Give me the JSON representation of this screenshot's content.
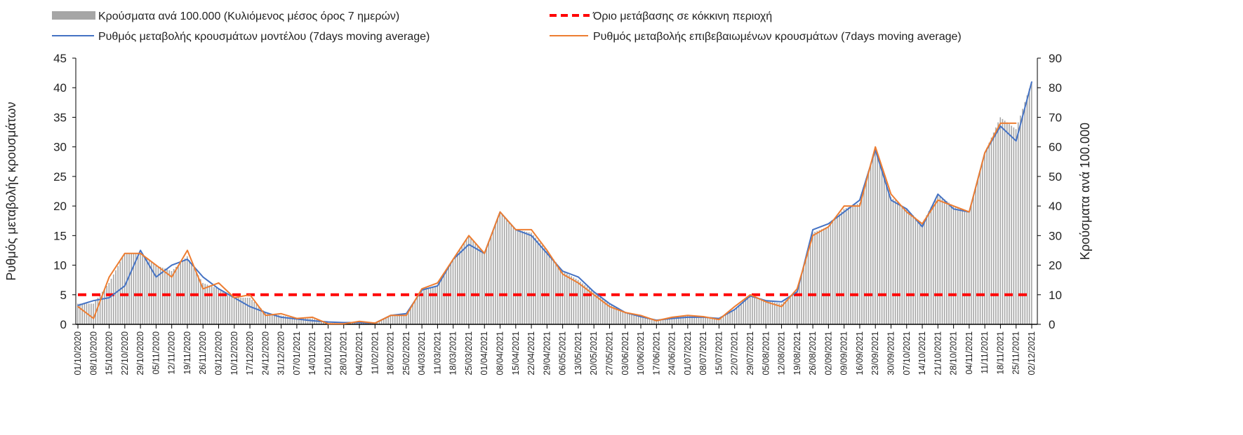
{
  "chart_data": {
    "type": "bar+line",
    "legend": {
      "placement": "top",
      "entries": [
        "Κρούσματα ανά 100.000 (Κυλιόμενος μέσος όρος 7 ημερών)",
        "Όριο μετάβασης σε κόκκινη περιοχή",
        "Ρυθμός μεταβολής κρουσμάτων μοντέλου (7days moving average)",
        "Ρυθμός μεταβολής επιβεβαιωμένων κρουσμάτων (7days moving average)"
      ]
    },
    "ylabel_left": "Ρυθμός μεταβολής κρουσμάτων",
    "ylabel_right": "Κρούσματα ανά 100.000",
    "ylim_left": [
      0,
      45
    ],
    "yticks_left": [
      0,
      5,
      10,
      15,
      20,
      25,
      30,
      35,
      40,
      45
    ],
    "ylim_right": [
      0,
      90
    ],
    "yticks_right": [
      0,
      10,
      20,
      30,
      40,
      50,
      60,
      70,
      80,
      90
    ],
    "x": [
      "01/10/2020",
      "08/10/2020",
      "15/10/2020",
      "22/10/2020",
      "29/10/2020",
      "05/11/2020",
      "12/11/2020",
      "19/11/2020",
      "26/11/2020",
      "03/12/2020",
      "10/12/2020",
      "17/12/2020",
      "24/12/2020",
      "31/12/2020",
      "07/01/2021",
      "14/01/2021",
      "21/01/2021",
      "28/01/2021",
      "04/02/2021",
      "11/02/2021",
      "18/02/2021",
      "25/02/2021",
      "04/03/2021",
      "11/03/2021",
      "18/03/2021",
      "25/03/2021",
      "01/04/2021",
      "08/04/2021",
      "15/04/2021",
      "22/04/2021",
      "29/04/2021",
      "06/05/2021",
      "13/05/2021",
      "20/05/2021",
      "27/05/2021",
      "03/06/2021",
      "10/06/2021",
      "17/06/2021",
      "24/06/2021",
      "01/07/2021",
      "08/07/2021",
      "15/07/2021",
      "22/07/2021",
      "29/07/2021",
      "05/08/2021",
      "12/08/2021",
      "19/08/2021",
      "26/08/2021",
      "02/09/2021",
      "09/09/2021",
      "16/09/2021",
      "23/09/2021",
      "30/09/2021",
      "07/10/2021",
      "14/10/2021",
      "21/10/2021",
      "28/10/2021",
      "04/11/2021",
      "11/11/2021",
      "18/11/2021",
      "25/11/2021",
      "02/12/2021"
    ],
    "threshold_left": 5,
    "series": [
      {
        "name": "bars",
        "axis": "right",
        "color": "#a6a6a6",
        "values": [
          7,
          7,
          14,
          24,
          24,
          20,
          18,
          23,
          14,
          12,
          9,
          9,
          4,
          3,
          2,
          2,
          0.5,
          0.3,
          0.8,
          0.5,
          3,
          3,
          12,
          13,
          22,
          30,
          24,
          38,
          32,
          31,
          25,
          18,
          15,
          11,
          7,
          4,
          3,
          1.5,
          2.5,
          3,
          2.6,
          2,
          5,
          10,
          8,
          7,
          11,
          31,
          33,
          39,
          41,
          60,
          43,
          39,
          34,
          44,
          40,
          38,
          58,
          70,
          66,
          82
        ]
      },
      {
        "name": "model",
        "axis": "left",
        "color": "#4472c4",
        "values": [
          3.2,
          4.0,
          4.5,
          6.5,
          12.5,
          8,
          10,
          11,
          8,
          6,
          4.5,
          3,
          2,
          1.2,
          0.9,
          0.6,
          0.4,
          0.3,
          0.3,
          0.2,
          1.5,
          1.8,
          5.8,
          6.5,
          11,
          13.5,
          12,
          19,
          16,
          15,
          12,
          9,
          8,
          5.5,
          3.5,
          2,
          1.3,
          0.7,
          1.0,
          1.2,
          1.2,
          1.0,
          2.5,
          4.8,
          4,
          3.8,
          5.5,
          16,
          17,
          19,
          21,
          29.5,
          21,
          19.5,
          16.5,
          22,
          19.5,
          19,
          29,
          33.5,
          31,
          41
        ]
      },
      {
        "name": "confirmed",
        "axis": "left",
        "color": "#ed7d31",
        "values": [
          3.0,
          1.0,
          8,
          12,
          12,
          10,
          8,
          12.5,
          6,
          7,
          4.5,
          5,
          1.5,
          1.8,
          1,
          1.2,
          0.1,
          0.1,
          0.5,
          0.2,
          1.5,
          1.5,
          6,
          7,
          11,
          15,
          12,
          19,
          16,
          16,
          12.5,
          8.5,
          7,
          5,
          3,
          2,
          1.5,
          0.6,
          1.2,
          1.5,
          1.3,
          0.8,
          3,
          5,
          3.8,
          3.0,
          6,
          15,
          16.5,
          20,
          20,
          30,
          22,
          19,
          17,
          21,
          20,
          19,
          29,
          34,
          34,
          null
        ]
      }
    ],
    "colors": {
      "threshold": "#ff0000",
      "axis": "#000000"
    }
  }
}
